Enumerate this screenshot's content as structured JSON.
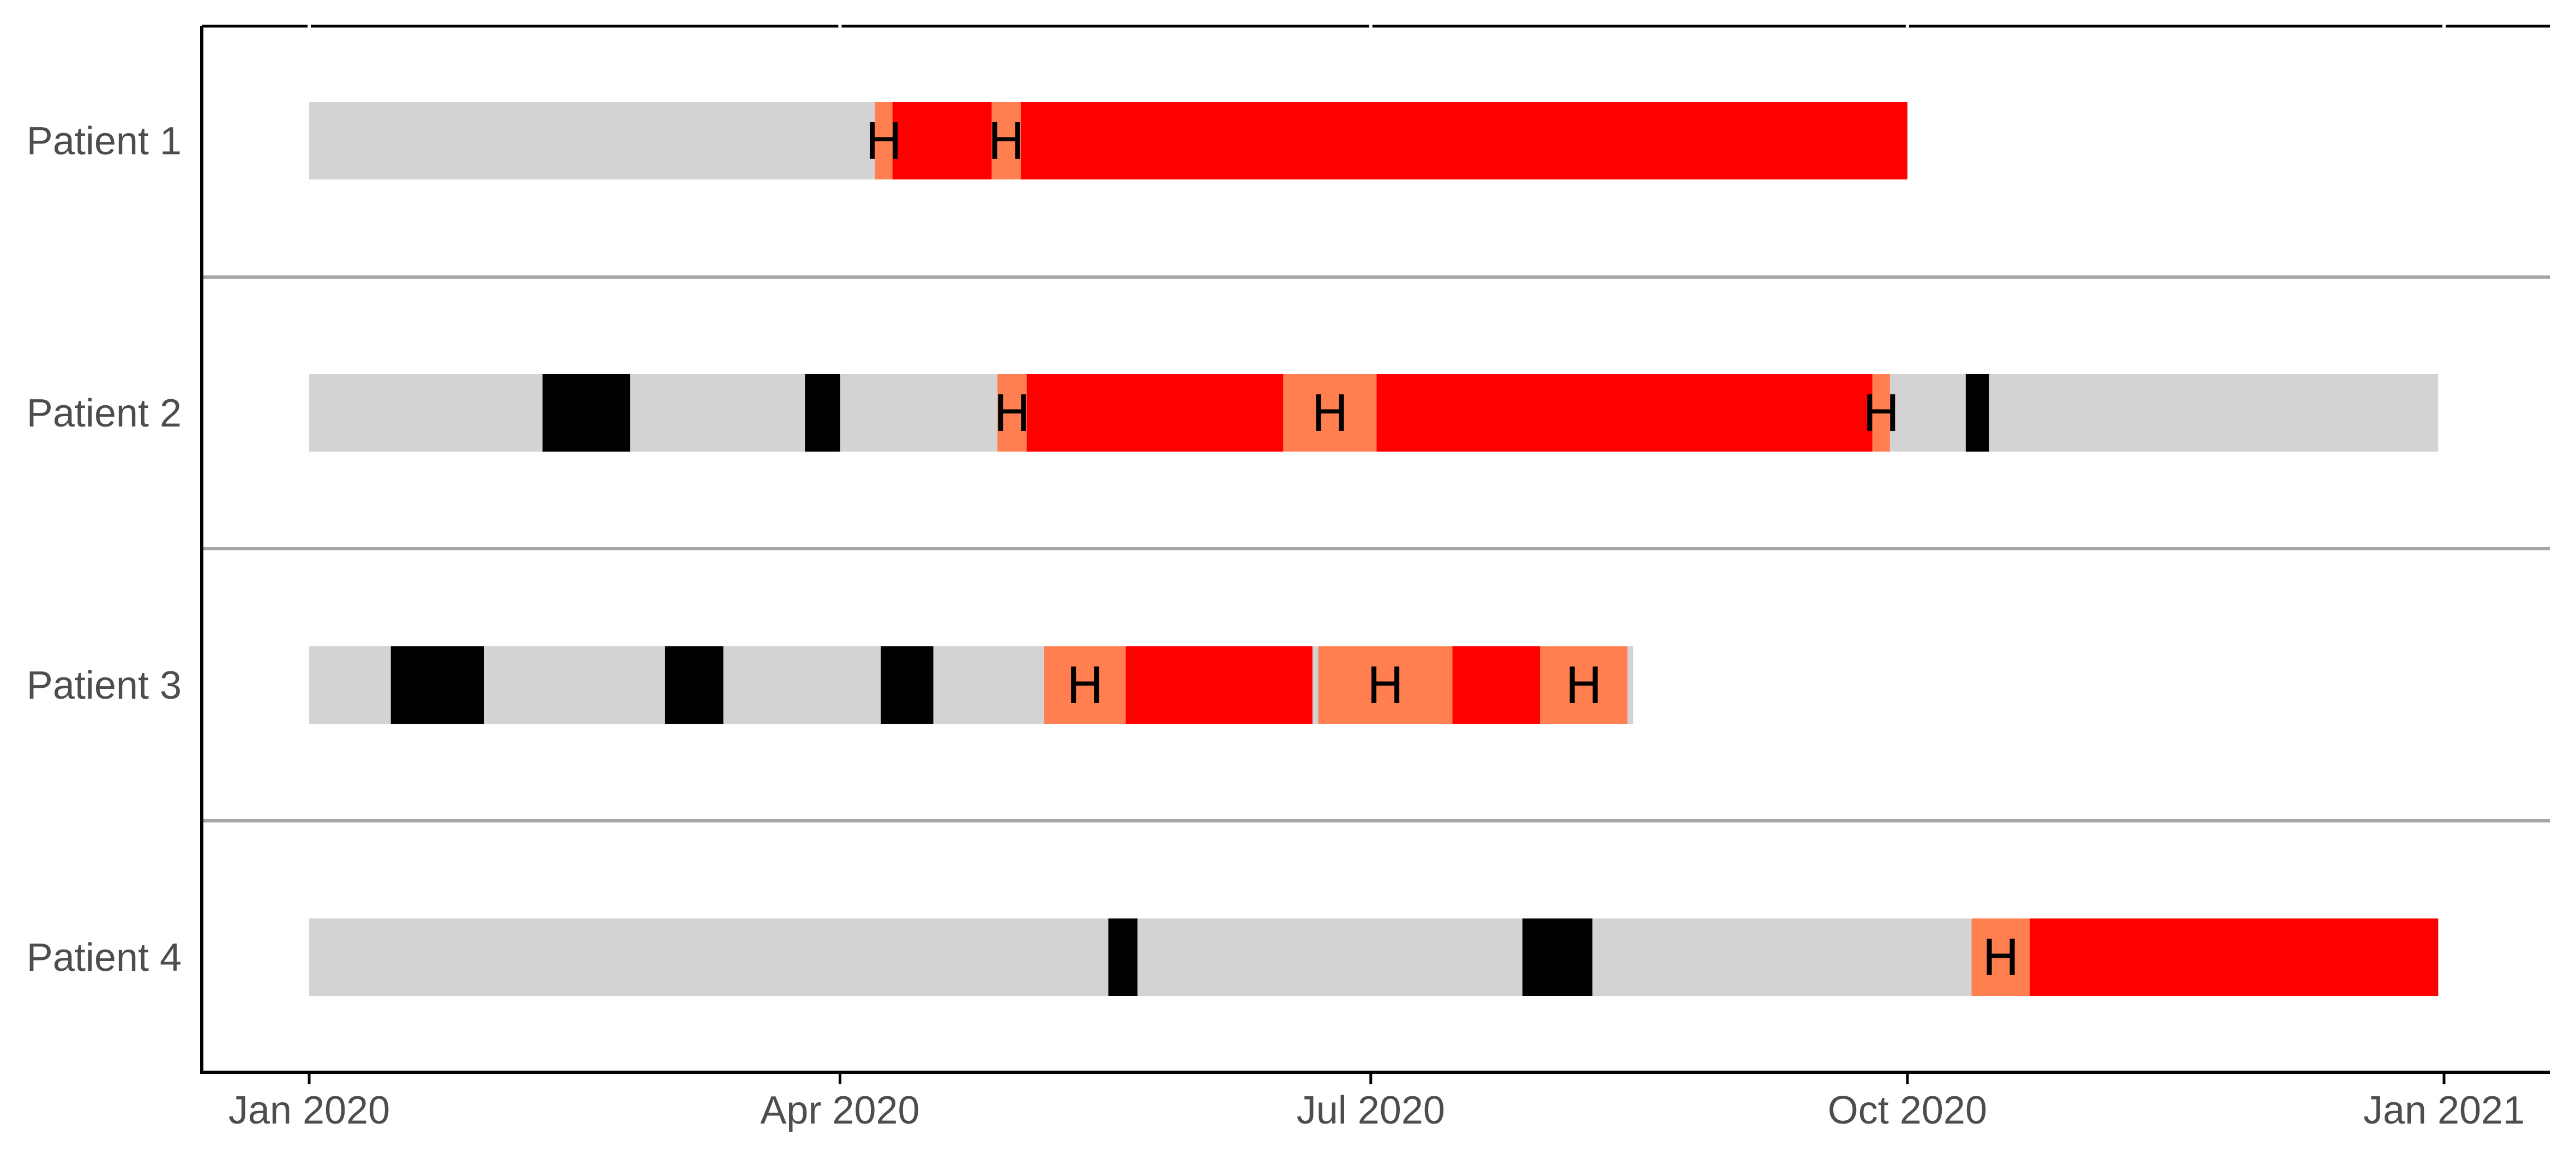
{
  "colors": {
    "background": "#ffffff",
    "axis": "#000000",
    "row_divider": "#a6a6a6",
    "tick_text": "#4d4d4d",
    "timeline": "#d3d3d3",
    "black_segment": "#000000",
    "red_segment": "#ff0000",
    "coral_segment": "#ff7f50",
    "marker_text": "#000000"
  },
  "chart_data": {
    "type": "timeline",
    "title": "",
    "xlabel": "",
    "ylabel": "",
    "x_range": [
      "2020-01-01",
      "2021-01-01"
    ],
    "x_ticks": [
      {
        "date": "2020-01-01",
        "label": "Jan 2020"
      },
      {
        "date": "2020-04-01",
        "label": "Apr 2020"
      },
      {
        "date": "2020-07-01",
        "label": "Jul 2020"
      },
      {
        "date": "2020-10-01",
        "label": "Oct 2020"
      },
      {
        "date": "2021-01-01",
        "label": "Jan 2021"
      }
    ],
    "grid": false,
    "legend": "none",
    "marker_text": "H",
    "rows": [
      {
        "label": "Patient 1",
        "segments": [
          {
            "start": "2020-01-01",
            "end": "2020-04-07",
            "color": "timeline"
          },
          {
            "start": "2020-04-07",
            "end": "2020-04-10",
            "color": "coral_segment",
            "marker": true
          },
          {
            "start": "2020-04-10",
            "end": "2020-04-27",
            "color": "red_segment"
          },
          {
            "start": "2020-04-27",
            "end": "2020-05-02",
            "color": "coral_segment",
            "marker": true
          },
          {
            "start": "2020-05-02",
            "end": "2020-10-01",
            "color": "red_segment"
          }
        ]
      },
      {
        "label": "Patient 2",
        "segments": [
          {
            "start": "2020-01-01",
            "end": "2020-12-31",
            "color": "timeline"
          },
          {
            "start": "2020-02-10",
            "end": "2020-02-25",
            "color": "black_segment"
          },
          {
            "start": "2020-03-26",
            "end": "2020-04-01",
            "color": "black_segment"
          },
          {
            "start": "2020-04-28",
            "end": "2020-05-03",
            "color": "coral_segment",
            "marker": true
          },
          {
            "start": "2020-05-03",
            "end": "2020-06-16",
            "color": "red_segment"
          },
          {
            "start": "2020-06-16",
            "end": "2020-07-02",
            "color": "coral_segment",
            "marker": true
          },
          {
            "start": "2020-07-02",
            "end": "2020-09-25",
            "color": "red_segment"
          },
          {
            "start": "2020-09-25",
            "end": "2020-09-28",
            "color": "coral_segment",
            "marker": true
          },
          {
            "start": "2020-10-11",
            "end": "2020-10-15",
            "color": "black_segment"
          }
        ]
      },
      {
        "label": "Patient 3",
        "segments": [
          {
            "start": "2020-01-01",
            "end": "2020-08-15",
            "color": "timeline"
          },
          {
            "start": "2020-01-15",
            "end": "2020-01-31",
            "color": "black_segment"
          },
          {
            "start": "2020-03-02",
            "end": "2020-03-12",
            "color": "black_segment"
          },
          {
            "start": "2020-04-08",
            "end": "2020-04-17",
            "color": "black_segment"
          },
          {
            "start": "2020-05-06",
            "end": "2020-05-20",
            "color": "coral_segment",
            "marker": true
          },
          {
            "start": "2020-05-20",
            "end": "2020-06-21",
            "color": "red_segment"
          },
          {
            "start": "2020-06-22",
            "end": "2020-07-15",
            "color": "coral_segment",
            "marker": true
          },
          {
            "start": "2020-07-15",
            "end": "2020-07-30",
            "color": "red_segment"
          },
          {
            "start": "2020-07-30",
            "end": "2020-08-14",
            "color": "coral_segment",
            "marker": true
          }
        ]
      },
      {
        "label": "Patient 4",
        "segments": [
          {
            "start": "2020-01-01",
            "end": "2020-12-31",
            "color": "timeline"
          },
          {
            "start": "2020-05-17",
            "end": "2020-05-22",
            "color": "black_segment"
          },
          {
            "start": "2020-07-27",
            "end": "2020-08-08",
            "color": "black_segment"
          },
          {
            "start": "2020-10-12",
            "end": "2020-10-22",
            "color": "coral_segment",
            "marker": true
          },
          {
            "start": "2020-10-22",
            "end": "2020-12-31",
            "color": "red_segment"
          }
        ]
      }
    ]
  }
}
